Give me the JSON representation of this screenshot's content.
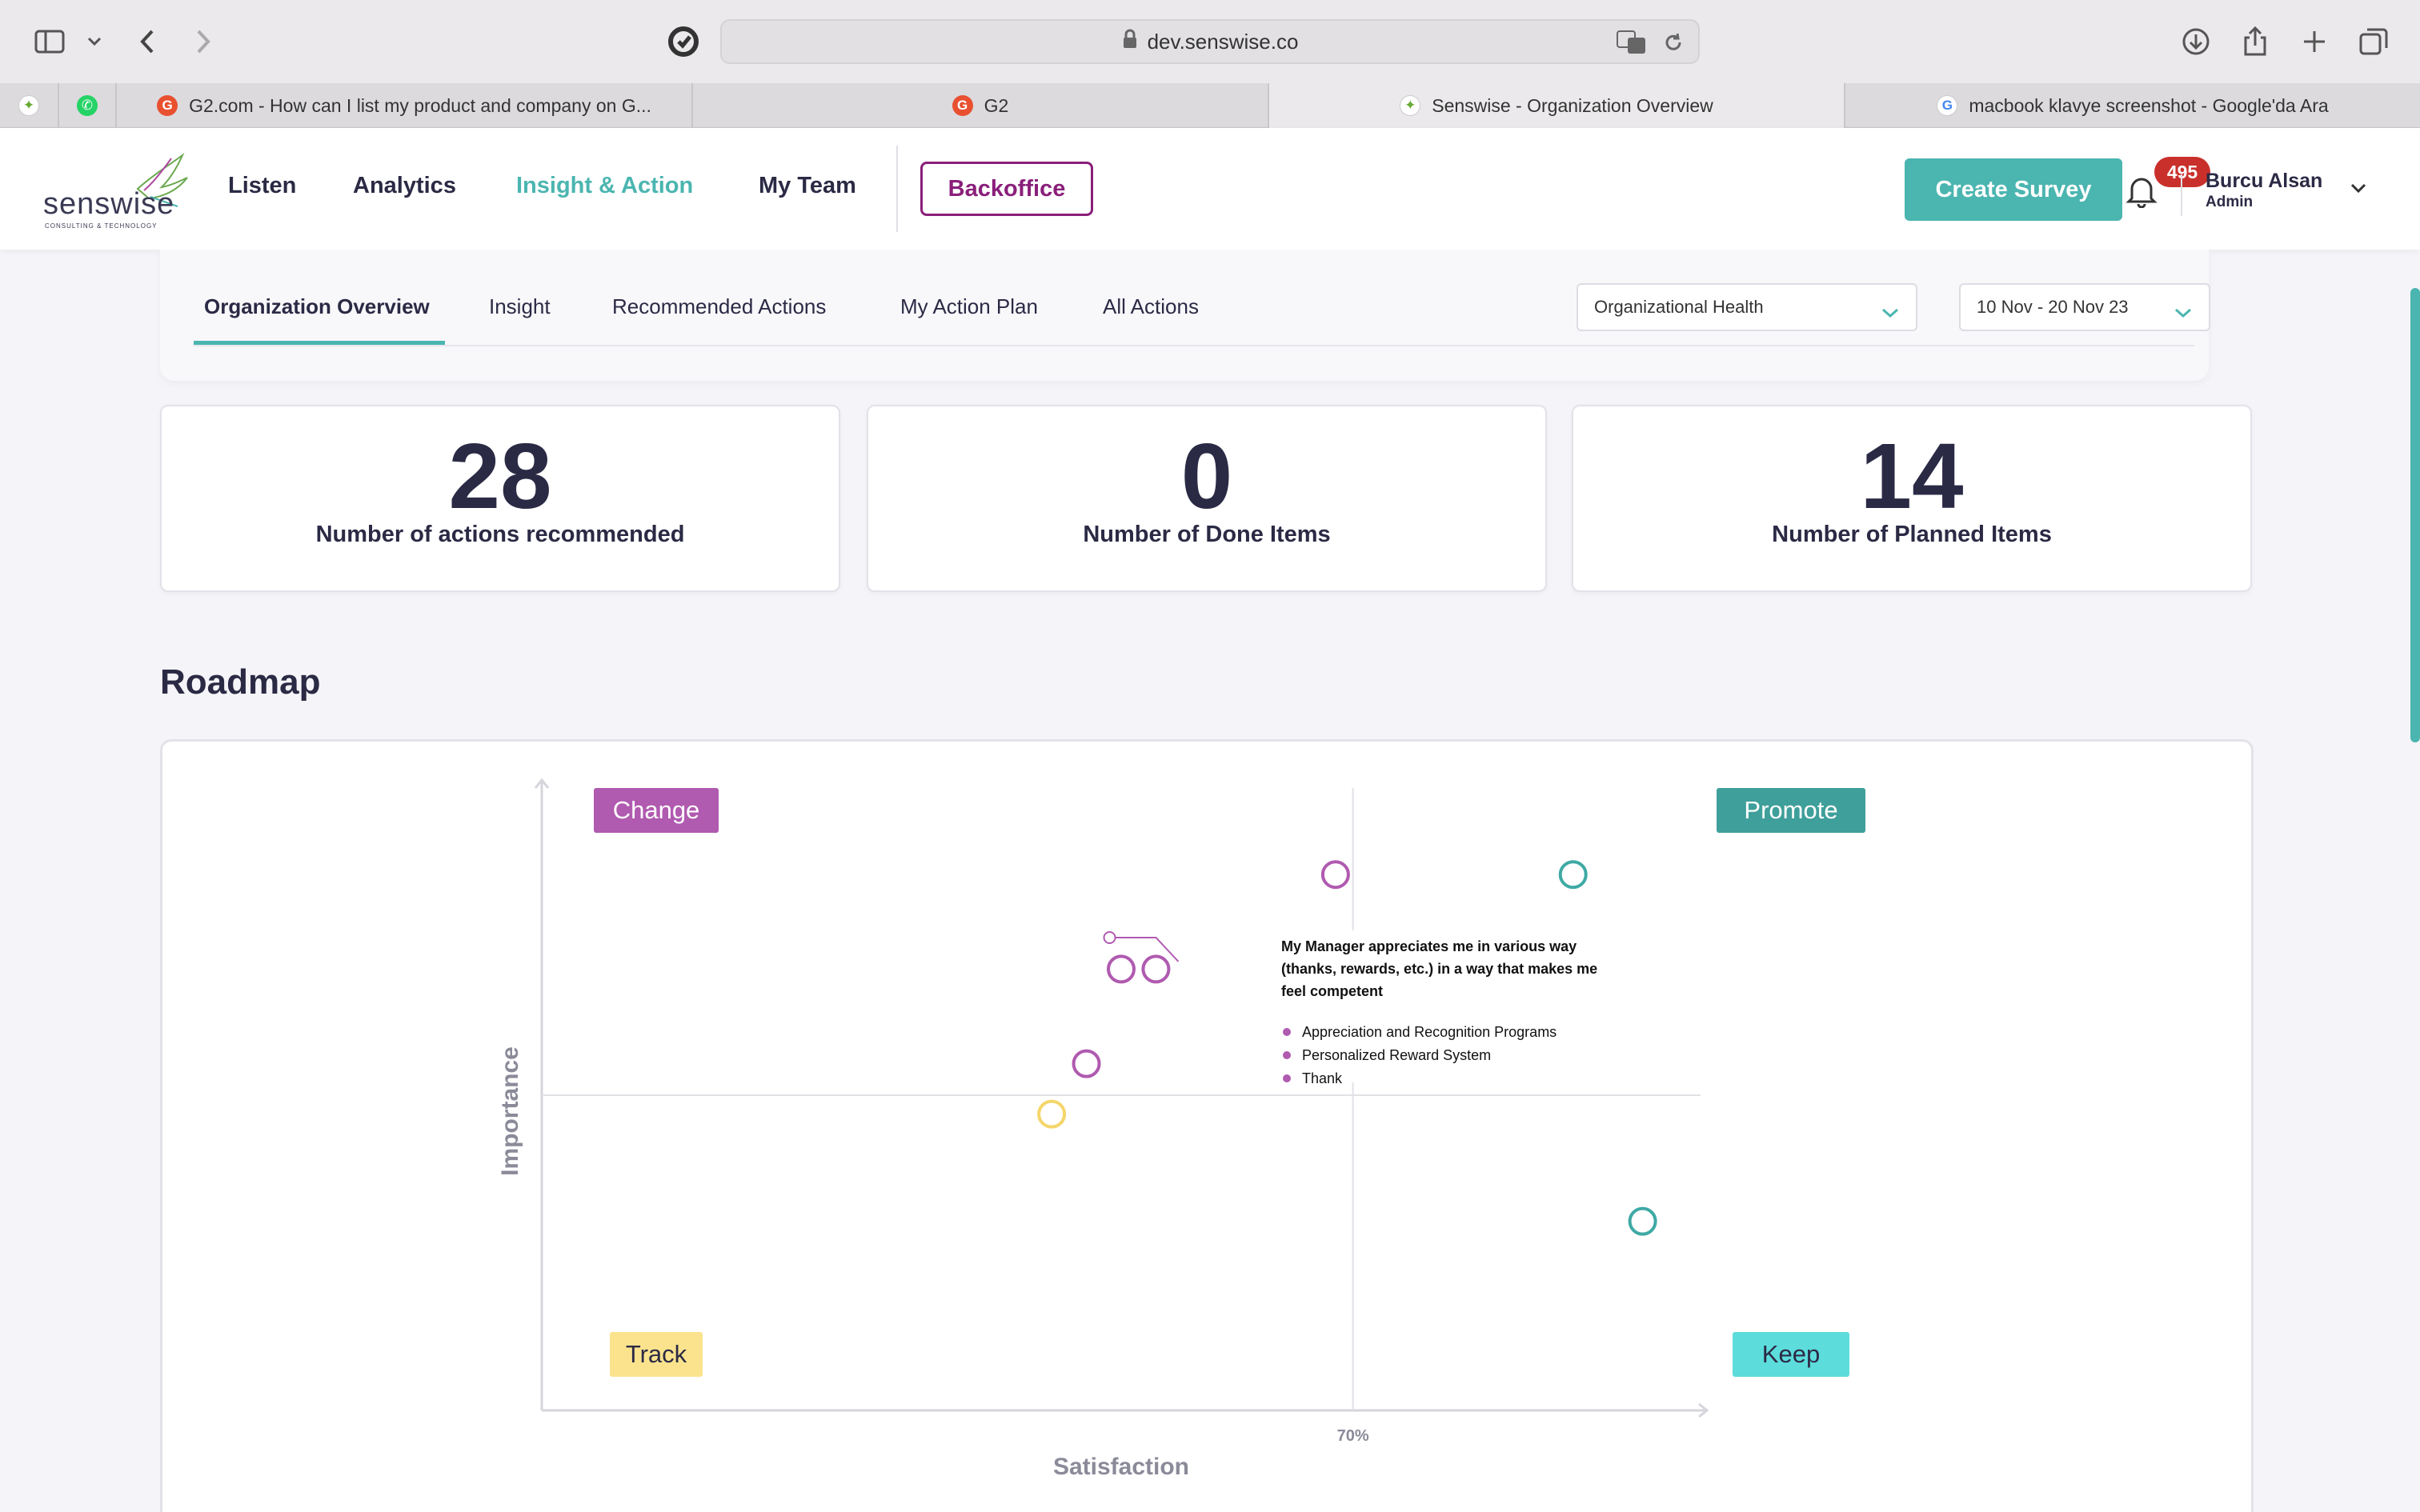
{
  "browser": {
    "url": "dev.senswise.co",
    "tabs": [
      {
        "label": "",
        "favicon": "senswise"
      },
      {
        "label": "",
        "favicon": "whatsapp"
      },
      {
        "label": "G2.com - How can I list my product and company on G...",
        "favicon": "g2"
      },
      {
        "label": "G2",
        "favicon": "g2"
      },
      {
        "label": "Senswise - Organization Overview",
        "favicon": "senswise",
        "active": true
      },
      {
        "label": "macbook klavye screenshot - Google'da Ara",
        "favicon": "google"
      }
    ]
  },
  "header": {
    "logo_text": "senswise",
    "logo_sub": "CONSULTING & TECHNOLOGY",
    "nav": [
      "Listen",
      "Analytics",
      "Insight & Action",
      "My Team"
    ],
    "active_nav": "Insight & Action",
    "backoffice_label": "Backoffice",
    "create_survey_label": "Create Survey",
    "notification_count": "495",
    "user_name": "Burcu Alsan",
    "user_role": "Admin"
  },
  "subnav": {
    "tabs": [
      "Organization Overview",
      "Insight",
      "Recommended Actions",
      "My Action Plan",
      "All Actions"
    ],
    "active_tab": "Organization Overview",
    "category_select": "Organizational Health",
    "date_select": "10 Nov - 20 Nov 23"
  },
  "stats": [
    {
      "value": "28",
      "label": "Number of actions recommended"
    },
    {
      "value": "0",
      "label": "Number of Done Items"
    },
    {
      "value": "14",
      "label": "Number of Planned Items"
    }
  ],
  "roadmap": {
    "title": "Roadmap",
    "tooltip": {
      "title": "My Manager appreciates me in various way (thanks, rewards, etc.) in a way that makes me feel competent",
      "items": [
        "Appreciation and Recognition Programs",
        "Personalized Reward System",
        "Thank"
      ]
    }
  },
  "chart_data": {
    "type": "scatter",
    "xlabel": "Satisfaction",
    "ylabel": "Importance",
    "x_tick_labels": [
      "70%"
    ],
    "quadrants": [
      {
        "label": "Change",
        "color": "#b05ab0",
        "text_color": "#ffffff"
      },
      {
        "label": "Promote",
        "color": "#3f9f9a",
        "text_color": "#ffffff"
      },
      {
        "label": "Track",
        "color": "#fbe38e",
        "text_color": "#2b2a45"
      },
      {
        "label": "Keep",
        "color": "#5ddcdc",
        "text_color": "#2b2a45"
      }
    ],
    "x_range": [
      0,
      100
    ],
    "y_range": [
      0,
      100
    ],
    "x_threshold": 70,
    "y_threshold": 50,
    "points": [
      {
        "x": 68.5,
        "y": 85,
        "quadrant": "Change",
        "color": "#b05ab0"
      },
      {
        "x": 50,
        "y": 70,
        "quadrant": "Change",
        "color": "#b05ab0"
      },
      {
        "x": 53,
        "y": 70,
        "quadrant": "Change",
        "color": "#b05ab0"
      },
      {
        "x": 47,
        "y": 55,
        "quadrant": "Change",
        "color": "#b05ab0"
      },
      {
        "x": 49,
        "y": 75,
        "quadrant": "Change",
        "color": "#b05ab0",
        "hovered": true
      },
      {
        "x": 44,
        "y": 47,
        "quadrant": "Track",
        "color": "#f5d66b"
      },
      {
        "x": 89,
        "y": 85,
        "quadrant": "Promote",
        "color": "#3fa9a5"
      },
      {
        "x": 92,
        "y": 70,
        "quadrant": "Promote",
        "color": "#3fa9a5"
      },
      {
        "x": 92,
        "y": 55,
        "quadrant": "Promote",
        "color": "#3fa9a5"
      },
      {
        "x": 95,
        "y": 30,
        "quadrant": "Keep",
        "color": "#3fa9a5"
      }
    ]
  }
}
